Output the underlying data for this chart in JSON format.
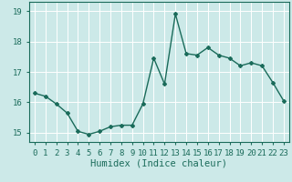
{
  "x": [
    0,
    1,
    2,
    3,
    4,
    5,
    6,
    7,
    8,
    9,
    10,
    11,
    12,
    13,
    14,
    15,
    16,
    17,
    18,
    19,
    20,
    21,
    22,
    23
  ],
  "y": [
    16.3,
    16.2,
    15.95,
    15.65,
    15.05,
    14.95,
    15.05,
    15.2,
    15.25,
    15.25,
    15.95,
    17.45,
    16.6,
    18.9,
    17.6,
    17.55,
    17.8,
    17.55,
    17.45,
    17.2,
    17.3,
    17.2,
    16.65,
    16.05
  ],
  "xlabel": "Humidex (Indice chaleur)",
  "ylim": [
    14.7,
    19.3
  ],
  "xlim": [
    -0.5,
    23.5
  ],
  "yticks": [
    15,
    16,
    17,
    18,
    19
  ],
  "xticks": [
    0,
    1,
    2,
    3,
    4,
    5,
    6,
    7,
    8,
    9,
    10,
    11,
    12,
    13,
    14,
    15,
    16,
    17,
    18,
    19,
    20,
    21,
    22,
    23
  ],
  "line_color": "#1a6b5a",
  "marker": "D",
  "marker_size": 2.0,
  "bg_color": "#cce9e8",
  "grid_color": "#ffffff",
  "xlabel_fontsize": 7.5,
  "tick_fontsize": 6.5,
  "line_width": 1.0
}
